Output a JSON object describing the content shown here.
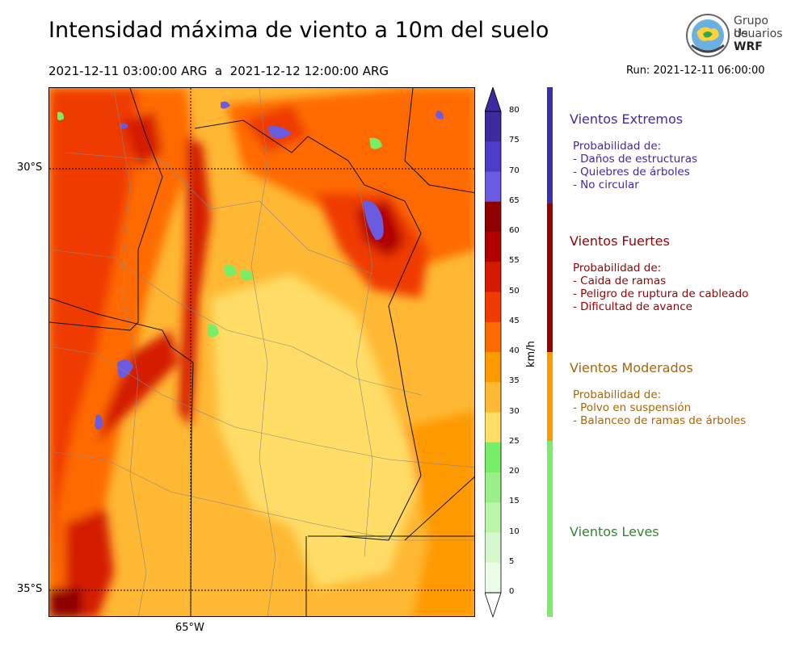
{
  "header": {
    "title": "Intensidad máxima de viento a 10m del suelo",
    "period": "2021-12-11 03:00:00 ARG  a  2021-12-12 12:00:00 ARG",
    "run": "Run: 2021-12-11 06:00:00"
  },
  "logo": {
    "line1": "Grupo de",
    "line2": "Usuarios",
    "line3": "WRF"
  },
  "map": {
    "lat_labels": [
      "30°S",
      "35°S"
    ],
    "lon_labels": [
      "65°W"
    ]
  },
  "colorbar": {
    "unit": "km/h",
    "ticks": [
      "80",
      "75",
      "70",
      "65",
      "60",
      "55",
      "50",
      "45",
      "40",
      "35",
      "30",
      "25",
      "20",
      "15",
      "10",
      "5",
      "0"
    ],
    "colors": [
      "#3d2a9e",
      "#4c3cc8",
      "#6b5be0",
      "#8e0000",
      "#b20000",
      "#d41a00",
      "#ef3b00",
      "#ff6a00",
      "#ff9900",
      "#ffb833",
      "#ffdd66",
      "#77ee66",
      "#99f088",
      "#bbf5aa",
      "#d5f9cc",
      "#ebfde6"
    ]
  },
  "categories": [
    {
      "title": "Vientos Extremos",
      "color": "#3b2ca8",
      "lines": [
        "Probabilidad de:",
        "- Daños de estructuras",
        "- Quiebres de árboles",
        "- No circular"
      ]
    },
    {
      "title": "Vientos Fuertes",
      "color": "#990000",
      "lines": [
        "Probabilidad de:",
        "- Caida de ramas",
        "- Peligro de ruptura de cableado",
        "- Dificultad de avance"
      ]
    },
    {
      "title": "Vientos Moderados",
      "color": "#a8650a",
      "lines": [
        "Probabilidad de:",
        "- Polvo en suspensión",
        "- Balanceo de ramas de árboles"
      ]
    },
    {
      "title": "Vientos Leves",
      "color": "#2e8a2e",
      "lines": []
    }
  ]
}
